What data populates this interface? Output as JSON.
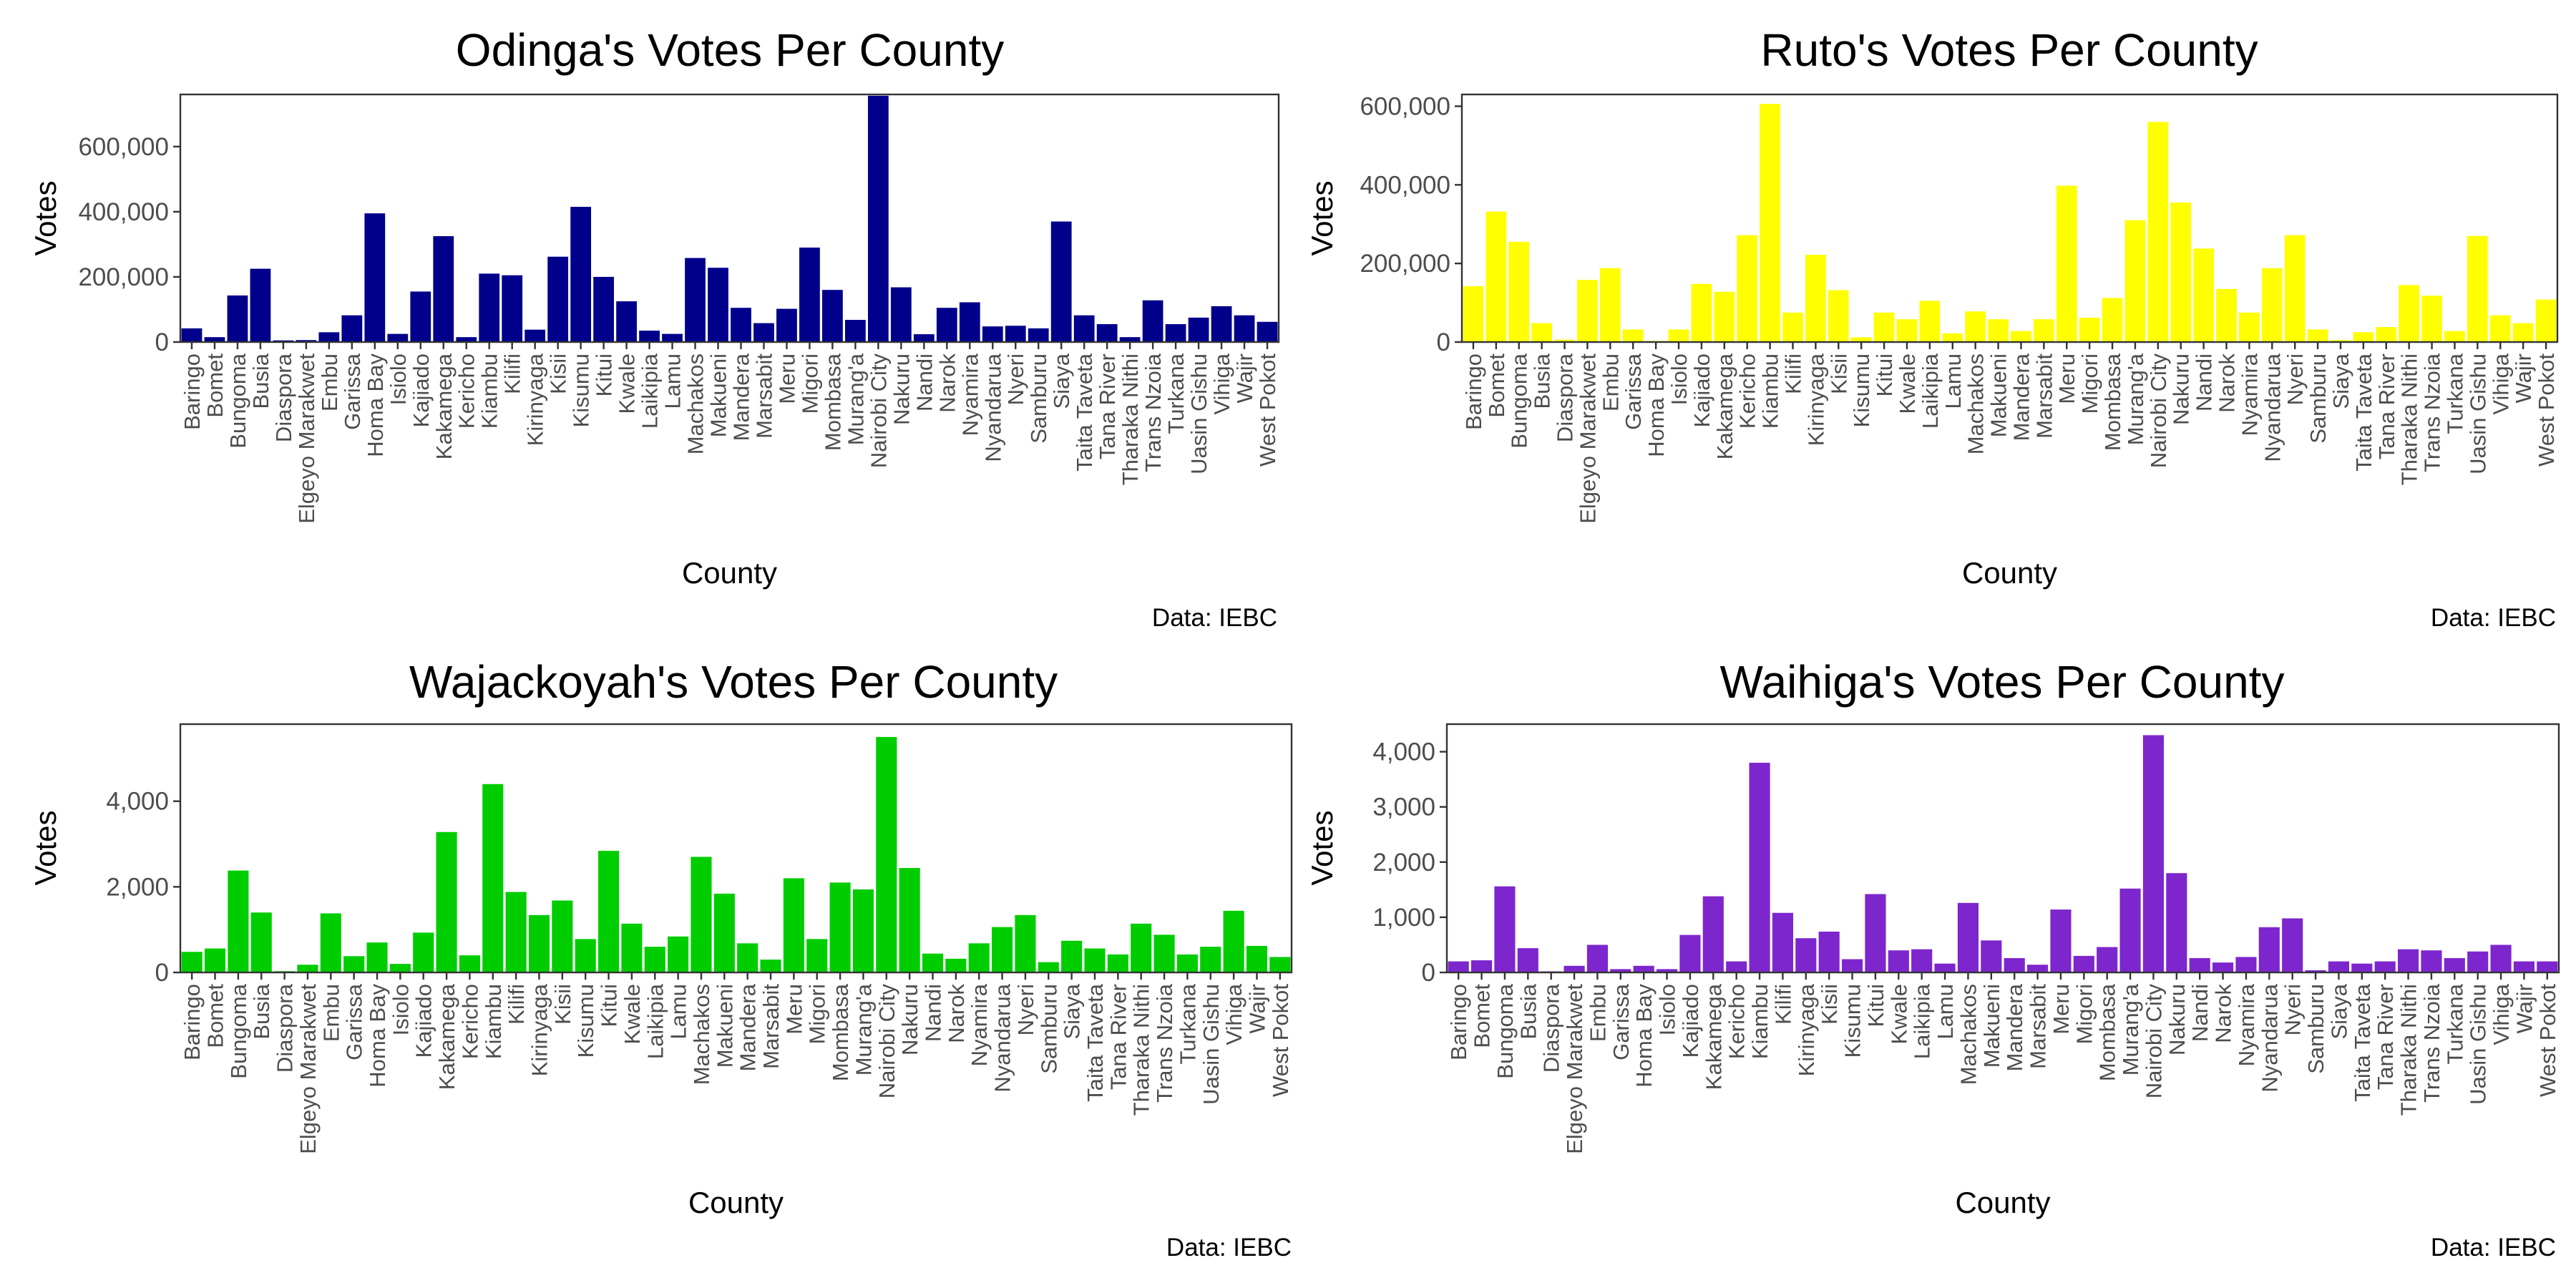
{
  "chart_data": [
    {
      "type": "bar",
      "title": "Odinga's Votes Per County",
      "xlabel": "County",
      "ylabel": "Votes",
      "caption": "Data: IEBC",
      "color": "#00008B",
      "ylim": [
        0,
        760000
      ],
      "yticks": [
        0,
        200000,
        400000,
        600000
      ],
      "yticklabels": [
        "0",
        "200,000",
        "400,000",
        "600,000"
      ],
      "categories": [
        "Baringo",
        "Bomet",
        "Bungoma",
        "Busia",
        "Diaspora",
        "Elgeyo Marakwet",
        "Embu",
        "Garissa",
        "Homa Bay",
        "Isiolo",
        "Kajiado",
        "Kakamega",
        "Kericho",
        "Kiambu",
        "Kilifi",
        "Kirinyaga",
        "Kisii",
        "Kisumu",
        "Kitui",
        "Kwale",
        "Laikipia",
        "Lamu",
        "Machakos",
        "Makueni",
        "Mandera",
        "Marsabit",
        "Meru",
        "Migori",
        "Mombasa",
        "Murang'a",
        "Nairobi City",
        "Nakuru",
        "Nandi",
        "Narok",
        "Nyamira",
        "Nyandarua",
        "Nyeri",
        "Samburu",
        "Siaya",
        "Taita Taveta",
        "Tana River",
        "Tharaka Nithi",
        "Trans Nzoia",
        "Turkana",
        "Uasin Gishu",
        "Vihiga",
        "Wajir",
        "West Pokot"
      ],
      "values": [
        42000,
        15000,
        143000,
        225000,
        5000,
        6000,
        30000,
        82000,
        395000,
        25000,
        155000,
        325000,
        15000,
        210000,
        205000,
        38000,
        262000,
        415000,
        200000,
        125000,
        35000,
        25000,
        258000,
        228000,
        105000,
        58000,
        102000,
        290000,
        160000,
        68000,
        756000,
        168000,
        24000,
        105000,
        122000,
        48000,
        50000,
        42000,
        370000,
        82000,
        55000,
        15000,
        128000,
        55000,
        75000,
        110000,
        82000,
        62000
      ]
    },
    {
      "type": "bar",
      "title": "Ruto's Votes Per County",
      "xlabel": "County",
      "ylabel": "Votes",
      "caption": "Data: IEBC",
      "color": "#FFFF00",
      "ylim": [
        0,
        630000
      ],
      "yticks": [
        0,
        200000,
        400000,
        600000
      ],
      "yticklabels": [
        "0",
        "200,000",
        "400,000",
        "600,000"
      ],
      "categories": [
        "Baringo",
        "Bomet",
        "Bungoma",
        "Busia",
        "Diaspora",
        "Elgeyo Marakwet",
        "Embu",
        "Garissa",
        "Homa Bay",
        "Isiolo",
        "Kajiado",
        "Kakamega",
        "Kericho",
        "Kiambu",
        "Kilifi",
        "Kirinyaga",
        "Kisii",
        "Kisumu",
        "Kitui",
        "Kwale",
        "Laikipia",
        "Lamu",
        "Machakos",
        "Makueni",
        "Mandera",
        "Marsabit",
        "Meru",
        "Migori",
        "Mombasa",
        "Murang'a",
        "Nairobi City",
        "Nakuru",
        "Nandi",
        "Narok",
        "Nyamira",
        "Nyandarua",
        "Nyeri",
        "Samburu",
        "Siaya",
        "Taita Taveta",
        "Tana River",
        "Tharaka Nithi",
        "Trans Nzoia",
        "Turkana",
        "Uasin Gishu",
        "Vihiga",
        "Wajir",
        "West Pokot"
      ],
      "values": [
        142000,
        332000,
        255000,
        48000,
        6000,
        158000,
        188000,
        32000,
        3000,
        32000,
        148000,
        128000,
        272000,
        606000,
        75000,
        222000,
        132000,
        12000,
        75000,
        58000,
        105000,
        22000,
        78000,
        58000,
        28000,
        58000,
        398000,
        62000,
        112000,
        310000,
        560000,
        355000,
        238000,
        135000,
        75000,
        188000,
        272000,
        32000,
        5000,
        25000,
        38000,
        145000,
        118000,
        28000,
        270000,
        68000,
        48000,
        108000
      ]
    },
    {
      "type": "bar",
      "title": "Wajackoyah's Votes Per County",
      "xlabel": "County",
      "ylabel": "Votes",
      "caption": "Data: IEBC",
      "color": "#00CD00",
      "ylim": [
        0,
        5800
      ],
      "yticks": [
        0,
        2000,
        4000
      ],
      "yticklabels": [
        "0",
        "2,000",
        "4,000"
      ],
      "categories": [
        "Baringo",
        "Bomet",
        "Bungoma",
        "Busia",
        "Diaspora",
        "Elgeyo Marakwet",
        "Embu",
        "Garissa",
        "Homa Bay",
        "Isiolo",
        "Kajiado",
        "Kakamega",
        "Kericho",
        "Kiambu",
        "Kilifi",
        "Kirinyaga",
        "Kisii",
        "Kisumu",
        "Kitui",
        "Kwale",
        "Laikipia",
        "Lamu",
        "Machakos",
        "Makueni",
        "Mandera",
        "Marsabit",
        "Meru",
        "Migori",
        "Mombasa",
        "Murang'a",
        "Nairobi City",
        "Nakuru",
        "Nandi",
        "Narok",
        "Nyamira",
        "Nyandarua",
        "Nyeri",
        "Samburu",
        "Siaya",
        "Taita Taveta",
        "Tana River",
        "Tharaka Nithi",
        "Trans Nzoia",
        "Turkana",
        "Uasin Gishu",
        "Vihiga",
        "Wajir",
        "West Pokot"
      ],
      "values": [
        480,
        560,
        2380,
        1400,
        30,
        180,
        1380,
        380,
        700,
        200,
        930,
        3280,
        400,
        4400,
        1880,
        1340,
        1680,
        780,
        2840,
        1140,
        600,
        840,
        2700,
        1840,
        680,
        300,
        2200,
        780,
        2100,
        1940,
        5500,
        2440,
        440,
        320,
        680,
        1060,
        1340,
        240,
        740,
        560,
        420,
        1140,
        880,
        420,
        600,
        1440,
        620,
        360
      ]
    },
    {
      "type": "bar",
      "title": "Waihiga's Votes Per County",
      "xlabel": "County",
      "ylabel": "Votes",
      "caption": "Data: IEBC",
      "color": "#7D26CD",
      "ylim": [
        0,
        4500
      ],
      "yticks": [
        0,
        1000,
        2000,
        3000,
        4000
      ],
      "yticklabels": [
        "0",
        "1,000",
        "2,000",
        "3,000",
        "4,000"
      ],
      "categories": [
        "Baringo",
        "Bomet",
        "Bungoma",
        "Busia",
        "Diaspora",
        "Elgeyo Marakwet",
        "Embu",
        "Garissa",
        "Homa Bay",
        "Isiolo",
        "Kajiado",
        "Kakamega",
        "Kericho",
        "Kiambu",
        "Kilifi",
        "Kirinyaga",
        "Kisii",
        "Kisumu",
        "Kitui",
        "Kwale",
        "Laikipia",
        "Lamu",
        "Machakos",
        "Makueni",
        "Mandera",
        "Marsabit",
        "Meru",
        "Migori",
        "Mombasa",
        "Murang'a",
        "Nairobi City",
        "Nakuru",
        "Nandi",
        "Narok",
        "Nyamira",
        "Nyandarua",
        "Nyeri",
        "Samburu",
        "Siaya",
        "Taita Taveta",
        "Tana River",
        "Tharaka Nithi",
        "Trans Nzoia",
        "Turkana",
        "Uasin Gishu",
        "Vihiga",
        "Wajir",
        "West Pokot"
      ],
      "values": [
        200,
        220,
        1560,
        440,
        20,
        120,
        500,
        60,
        120,
        60,
        680,
        1380,
        200,
        3800,
        1080,
        620,
        740,
        240,
        1420,
        400,
        420,
        160,
        1260,
        580,
        260,
        140,
        1140,
        300,
        460,
        1520,
        4300,
        1800,
        260,
        180,
        280,
        820,
        980,
        40,
        200,
        160,
        200,
        420,
        400,
        260,
        380,
        500,
        200,
        200
      ]
    }
  ]
}
